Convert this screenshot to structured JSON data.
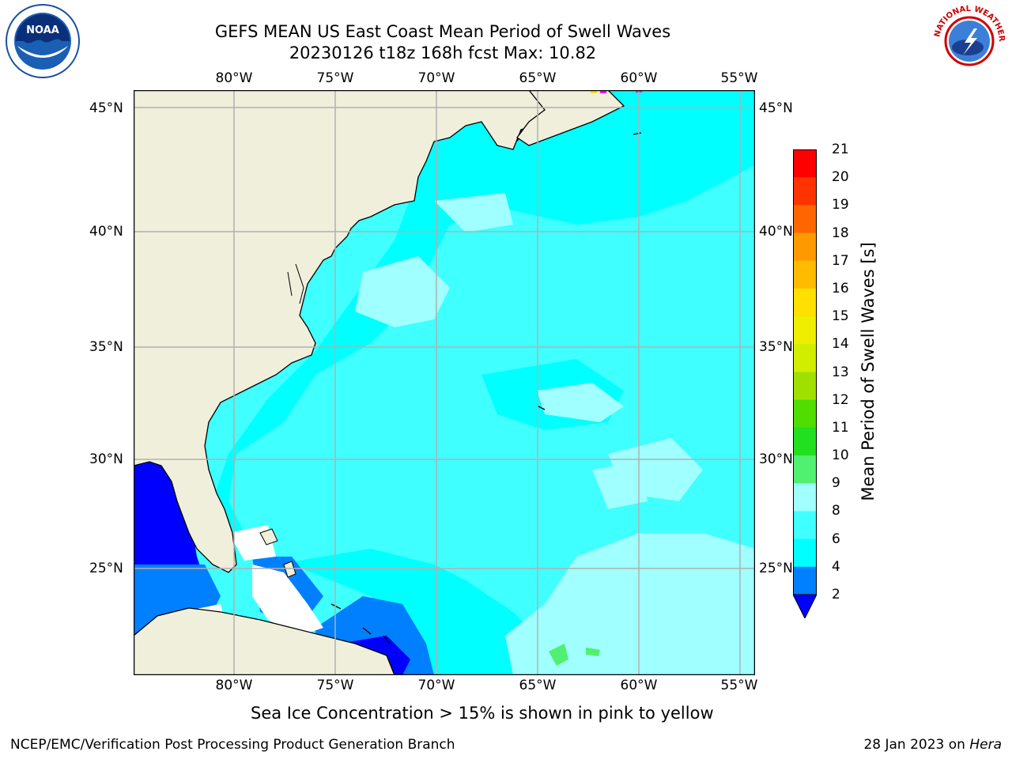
{
  "title_line1": "GEFS MEAN US East Coast Mean Period of Swell Waves",
  "title_line2": "20230126 t18z 168h fcst   Max: 10.82",
  "longitude_ticks": [
    "80°W",
    "75°W",
    "70°W",
    "65°W",
    "60°W",
    "55°W"
  ],
  "latitude_ticks": [
    "45°N",
    "40°N",
    "35°N",
    "30°N",
    "25°N"
  ],
  "colorbar": {
    "title": "Mean Period of Swell Waves [s]",
    "levels": [
      "2",
      "4",
      "6",
      "8",
      "9",
      "10",
      "11",
      "12",
      "13",
      "14",
      "15",
      "16",
      "17",
      "18",
      "19",
      "20",
      "21"
    ],
    "colors": [
      "#0000ff",
      "#0080ff",
      "#00ffff",
      "#40ffff",
      "#a0ffff",
      "#50f070",
      "#20e020",
      "#50dd00",
      "#a0e000",
      "#d0ee00",
      "#eeee00",
      "#ffe000",
      "#ffbb00",
      "#ff9900",
      "#ff6600",
      "#ff3300",
      "#ff0000"
    ],
    "extend": "min"
  },
  "map_colors": {
    "land": "#efefdc",
    "grid": "#b0b0b0",
    "swell_dominant": "#40ffff",
    "swell_short": "#00ffff",
    "swell_long": "#a0ffff",
    "swell_low": "#0000ff",
    "swell_mid_low": "#0080ff",
    "swell_high": "#50f070",
    "ice": "#ff00ff"
  },
  "note": "Sea Ice Concentration > 15% is shown in pink to yellow",
  "footer_left": "NCEP/EMC/Verification Post Processing Product Generation Branch",
  "footer_right_date": "28 Jan 2023 on",
  "footer_right_host": "Hera",
  "logos": [
    "noaa-logo",
    "nws-logo"
  ]
}
